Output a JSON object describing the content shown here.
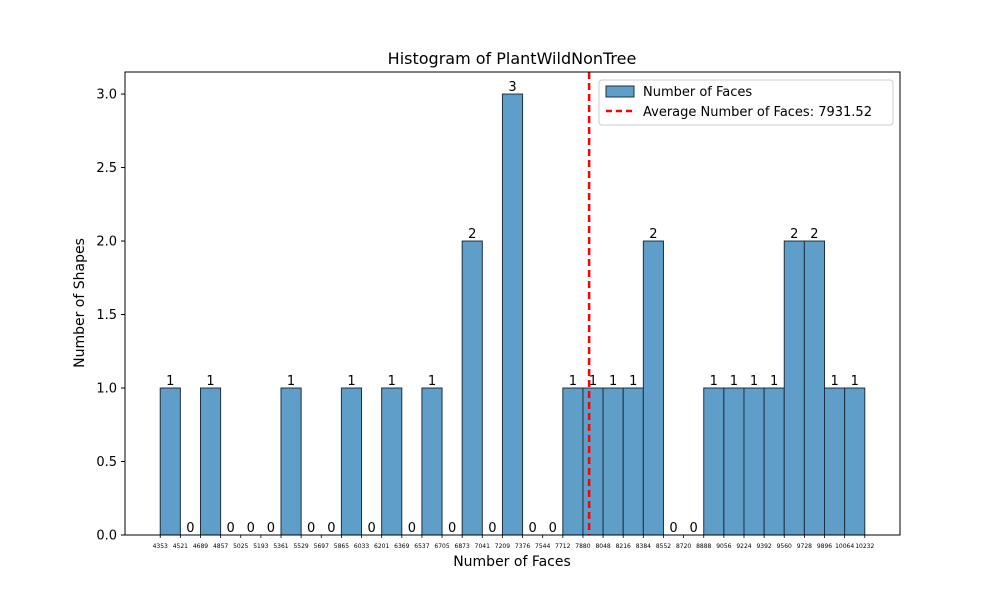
{
  "chart_data": {
    "type": "bar",
    "title": "Histogram of PlantWildNonTree",
    "xlabel": "Number of Faces",
    "ylabel": "Number of Shapes",
    "ylim": [
      0,
      3.15
    ],
    "yticks": [
      "0.0",
      "0.5",
      "1.0",
      "1.5",
      "2.0",
      "2.5",
      "3.0"
    ],
    "bin_edges": [
      4353,
      4521,
      4689,
      4857,
      5025,
      5193,
      5361,
      5529,
      5697,
      5865,
      6033,
      6201,
      6369,
      6537,
      6705,
      6873,
      7041,
      7209,
      7376,
      7544,
      7712,
      7880,
      8048,
      8216,
      8384,
      8552,
      8720,
      8888,
      9056,
      9224,
      9392,
      9560,
      9728,
      9896,
      10064,
      10232
    ],
    "xtick_labels": [
      "4353",
      "4521",
      "4689",
      "4857",
      "5025",
      "5193",
      "5361",
      "5529",
      "5697",
      "5865",
      "6033",
      "6201",
      "6369",
      "6537",
      "6705",
      "6873",
      "7041",
      "7209",
      "7376",
      "7544",
      "7712",
      "7880",
      "8048",
      "8216",
      "8384",
      "8552",
      "8720",
      "8888",
      "9056",
      "9224",
      "9392",
      "9560",
      "9728",
      "9896",
      "10064",
      "10232"
    ],
    "values": [
      1,
      0,
      1,
      0,
      0,
      0,
      1,
      0,
      0,
      1,
      0,
      1,
      0,
      1,
      0,
      2,
      0,
      3,
      0,
      0,
      1,
      1,
      1,
      1,
      2,
      0,
      0,
      1,
      1,
      1,
      1,
      2,
      2,
      1,
      1
    ],
    "average": 7931.52,
    "grid": false,
    "legend_position": "top-right",
    "legend": [
      "Number of Faces",
      "Average Number of Faces: 7931.52"
    ],
    "colors": {
      "bar_fill": "#5f9ec9",
      "bar_edge": "#1f3040",
      "average_line": "#ff0000"
    }
  }
}
